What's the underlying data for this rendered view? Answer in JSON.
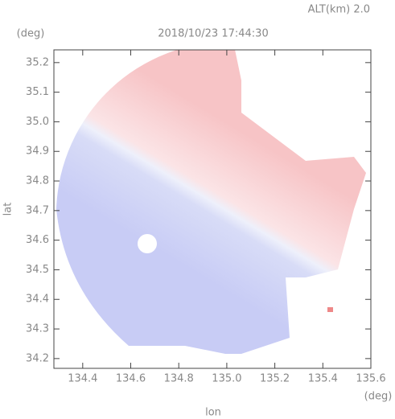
{
  "chart_data": {
    "type": "radar-map",
    "title": "2018/10/23 17:44:30",
    "subtitle": "ALT(km) 2.0",
    "y_unit": "(deg)",
    "x_unit": "(deg)",
    "xlabel": "lon",
    "ylabel": "lat",
    "xlim": [
      134.28,
      135.6
    ],
    "ylim": [
      34.167,
      35.243
    ],
    "xticks": [
      134.4,
      134.6,
      134.8,
      {
        "value": 135,
        "label": "135.0"
      },
      135.2,
      135.4,
      135.6
    ],
    "yticks": [
      34.2,
      34.3,
      34.4,
      34.5,
      34.6,
      34.7,
      34.8,
      34.9,
      {
        "value": 35,
        "label": "35.0"
      },
      35.1,
      35.2
    ]
  }
}
